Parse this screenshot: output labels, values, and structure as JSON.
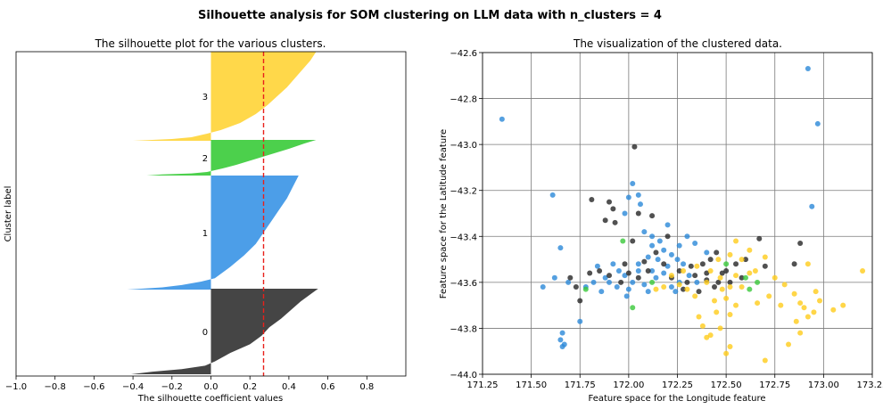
{
  "figure": {
    "suptitle": "Silhouette analysis for SOM clustering on LLM data with n_clusters = 4"
  },
  "chart_data": [
    {
      "type": "area",
      "title": "The silhouette plot for the various clusters.",
      "xlabel": "The silhouette coefficient values",
      "ylabel": "Cluster label",
      "xlim": [
        -1.0,
        1.0
      ],
      "xticks": [
        -1.0,
        -0.8,
        -0.6,
        -0.4,
        -0.2,
        0.0,
        0.2,
        0.4,
        0.6,
        0.8
      ],
      "xtick_labels": [
        "−1.0",
        "−0.8",
        "−0.6",
        "−0.4",
        "−0.2",
        "0.0",
        "0.2",
        "0.4",
        "0.6",
        "0.8"
      ],
      "average_silhouette": 0.27,
      "series": [
        {
          "name": "0",
          "label": "0",
          "color": "#454545",
          "profile": [
            [
              0,
              -0.41
            ],
            [
              0.03,
              -0.3
            ],
            [
              0.06,
              -0.15
            ],
            [
              0.1,
              -0.03
            ],
            [
              0.15,
              0.02
            ],
            [
              0.25,
              0.1
            ],
            [
              0.35,
              0.2
            ],
            [
              0.45,
              0.26
            ],
            [
              0.55,
              0.3
            ],
            [
              0.65,
              0.36
            ],
            [
              0.75,
              0.41
            ],
            [
              0.85,
              0.46
            ],
            [
              0.95,
              0.52
            ],
            [
              1.0,
              0.55
            ]
          ]
        },
        {
          "name": "1",
          "label": "1",
          "color": "#4c9ee8",
          "profile": [
            [
              0,
              -0.43
            ],
            [
              0.02,
              -0.25
            ],
            [
              0.04,
              -0.15
            ],
            [
              0.07,
              -0.05
            ],
            [
              0.1,
              0.02
            ],
            [
              0.2,
              0.1
            ],
            [
              0.3,
              0.17
            ],
            [
              0.4,
              0.23
            ],
            [
              0.5,
              0.27
            ],
            [
              0.6,
              0.31
            ],
            [
              0.7,
              0.35
            ],
            [
              0.8,
              0.39
            ],
            [
              0.9,
              0.42
            ],
            [
              1.0,
              0.45
            ]
          ]
        },
        {
          "name": "2",
          "label": "2",
          "color": "#4cd04c",
          "profile": [
            [
              0,
              -0.33
            ],
            [
              0.03,
              -0.25
            ],
            [
              0.06,
              -0.1
            ],
            [
              0.1,
              -0.02
            ],
            [
              0.2,
              0.06
            ],
            [
              0.3,
              0.13
            ],
            [
              0.45,
              0.22
            ],
            [
              0.6,
              0.31
            ],
            [
              0.75,
              0.4
            ],
            [
              0.9,
              0.48
            ],
            [
              1.0,
              0.54
            ]
          ]
        },
        {
          "name": "3",
          "label": "3",
          "color": "#ffd84a",
          "profile": [
            [
              0,
              -0.4
            ],
            [
              0.02,
              -0.2
            ],
            [
              0.04,
              -0.1
            ],
            [
              0.08,
              -0.02
            ],
            [
              0.12,
              0.05
            ],
            [
              0.2,
              0.15
            ],
            [
              0.3,
              0.23
            ],
            [
              0.4,
              0.29
            ],
            [
              0.5,
              0.34
            ],
            [
              0.6,
              0.39
            ],
            [
              0.7,
              0.43
            ],
            [
              0.8,
              0.47
            ],
            [
              0.9,
              0.51
            ],
            [
              1.0,
              0.54
            ]
          ]
        }
      ]
    },
    {
      "type": "scatter",
      "title": "The visualization of the clustered data.",
      "xlabel": "Feature space for the Longitude feature",
      "ylabel": "Feature space for the Latitude feature",
      "xlim": [
        171.25,
        173.25
      ],
      "ylim": [
        -44.0,
        -42.6
      ],
      "grid": true,
      "xticks": [
        171.25,
        171.5,
        171.75,
        172.0,
        172.25,
        172.5,
        172.75,
        173.0,
        173.25
      ],
      "xtick_labels": [
        "171.25",
        "171.50",
        "171.75",
        "172.00",
        "172.25",
        "172.50",
        "172.75",
        "173.00",
        "173.25"
      ],
      "yticks": [
        -44.0,
        -43.8,
        -43.6,
        -43.4,
        -43.2,
        -43.0,
        -42.8,
        -42.6
      ],
      "ytick_labels": [
        "−44.0",
        "−43.8",
        "−43.6",
        "−43.4",
        "−43.2",
        "−43.0",
        "−42.8",
        "−42.6"
      ],
      "series": [
        {
          "name": "0",
          "color": "#252525",
          "points": [
            [
              172.03,
              -43.01
            ],
            [
              171.81,
              -43.24
            ],
            [
              171.9,
              -43.25
            ],
            [
              171.92,
              -43.28
            ],
            [
              171.93,
              -43.34
            ],
            [
              171.88,
              -43.33
            ],
            [
              172.05,
              -43.3
            ],
            [
              172.12,
              -43.31
            ],
            [
              172.02,
              -43.42
            ],
            [
              172.2,
              -43.4
            ],
            [
              172.45,
              -43.47
            ],
            [
              172.5,
              -43.55
            ],
            [
              172.4,
              -43.56
            ],
            [
              172.34,
              -43.57
            ],
            [
              172.3,
              -43.6
            ],
            [
              172.28,
              -43.63
            ],
            [
              172.36,
              -43.64
            ],
            [
              172.46,
              -43.6
            ],
            [
              172.4,
              -43.59
            ],
            [
              172.55,
              -43.52
            ],
            [
              172.6,
              -43.5
            ],
            [
              172.67,
              -43.41
            ],
            [
              172.7,
              -43.53
            ],
            [
              172.88,
              -43.43
            ],
            [
              172.85,
              -43.52
            ],
            [
              172.1,
              -43.55
            ],
            [
              172.05,
              -43.58
            ],
            [
              172.0,
              -43.56
            ],
            [
              171.96,
              -43.6
            ],
            [
              171.9,
              -43.57
            ],
            [
              171.85,
              -43.55
            ],
            [
              171.8,
              -43.56
            ],
            [
              171.7,
              -43.58
            ],
            [
              171.73,
              -43.62
            ],
            [
              171.75,
              -43.68
            ],
            [
              172.18,
              -43.52
            ],
            [
              172.22,
              -43.58
            ],
            [
              172.26,
              -43.55
            ],
            [
              172.14,
              -43.47
            ],
            [
              172.08,
              -43.51
            ],
            [
              171.98,
              -43.52
            ],
            [
              172.44,
              -43.62
            ],
            [
              172.52,
              -43.6
            ],
            [
              172.32,
              -43.53
            ],
            [
              172.38,
              -43.52
            ],
            [
              172.48,
              -43.56
            ],
            [
              172.58,
              -43.58
            ],
            [
              172.42,
              -43.5
            ]
          ]
        },
        {
          "name": "1",
          "color": "#2a88d8",
          "points": [
            [
              171.35,
              -42.89
            ],
            [
              172.92,
              -42.67
            ],
            [
              172.97,
              -42.91
            ],
            [
              172.94,
              -43.27
            ],
            [
              171.61,
              -43.22
            ],
            [
              171.65,
              -43.45
            ],
            [
              171.66,
              -43.82
            ],
            [
              171.65,
              -43.85
            ],
            [
              171.66,
              -43.88
            ],
            [
              171.67,
              -43.87
            ],
            [
              171.75,
              -43.77
            ],
            [
              171.56,
              -43.62
            ],
            [
              171.62,
              -43.58
            ],
            [
              171.69,
              -43.6
            ],
            [
              172.02,
              -43.17
            ],
            [
              172.05,
              -43.22
            ],
            [
              172.0,
              -43.23
            ],
            [
              172.06,
              -43.26
            ],
            [
              171.98,
              -43.3
            ],
            [
              172.08,
              -43.38
            ],
            [
              172.2,
              -43.35
            ],
            [
              172.3,
              -43.4
            ],
            [
              172.12,
              -43.44
            ],
            [
              172.1,
              -43.49
            ],
            [
              172.15,
              -43.5
            ],
            [
              172.05,
              -43.52
            ],
            [
              171.95,
              -43.55
            ],
            [
              171.88,
              -43.58
            ],
            [
              171.82,
              -43.6
            ],
            [
              171.78,
              -43.62
            ],
            [
              171.84,
              -43.53
            ],
            [
              171.92,
              -43.52
            ],
            [
              171.98,
              -43.57
            ],
            [
              172.02,
              -43.6
            ],
            [
              172.08,
              -43.61
            ],
            [
              172.14,
              -43.58
            ],
            [
              172.18,
              -43.56
            ],
            [
              172.22,
              -43.62
            ],
            [
              172.24,
              -43.64
            ],
            [
              172.1,
              -43.64
            ],
            [
              172.0,
              -43.63
            ],
            [
              171.94,
              -43.62
            ],
            [
              171.9,
              -43.6
            ],
            [
              172.16,
              -43.42
            ],
            [
              172.12,
              -43.4
            ],
            [
              172.26,
              -43.44
            ],
            [
              172.34,
              -43.43
            ],
            [
              172.4,
              -43.47
            ],
            [
              172.25,
              -43.5
            ],
            [
              172.2,
              -43.53
            ],
            [
              172.31,
              -43.57
            ],
            [
              172.28,
              -43.52
            ],
            [
              172.35,
              -43.6
            ],
            [
              172.12,
              -43.55
            ],
            [
              171.86,
              -43.64
            ],
            [
              171.99,
              -43.66
            ],
            [
              172.05,
              -43.55
            ],
            [
              172.18,
              -43.46
            ],
            [
              172.22,
              -43.48
            ],
            [
              172.26,
              -43.6
            ]
          ]
        },
        {
          "name": "2",
          "color": "#3ac83a",
          "points": [
            [
              171.97,
              -43.42
            ],
            [
              172.02,
              -43.71
            ],
            [
              171.78,
              -43.63
            ],
            [
              172.6,
              -43.58
            ],
            [
              172.62,
              -43.63
            ],
            [
              172.66,
              -43.6
            ],
            [
              172.12,
              -43.6
            ],
            [
              172.5,
              -43.52
            ]
          ]
        },
        {
          "name": "3",
          "color": "#ffcc1a",
          "points": [
            [
              172.55,
              -43.42
            ],
            [
              172.62,
              -43.46
            ],
            [
              172.7,
              -43.49
            ],
            [
              172.65,
              -43.55
            ],
            [
              172.75,
              -43.58
            ],
            [
              172.8,
              -43.61
            ],
            [
              172.85,
              -43.65
            ],
            [
              172.88,
              -43.69
            ],
            [
              172.9,
              -43.71
            ],
            [
              172.95,
              -43.73
            ],
            [
              172.98,
              -43.68
            ],
            [
              173.05,
              -43.72
            ],
            [
              173.1,
              -43.7
            ],
            [
              173.2,
              -43.55
            ],
            [
              172.92,
              -43.52
            ],
            [
              172.86,
              -43.77
            ],
            [
              172.82,
              -43.87
            ],
            [
              172.88,
              -43.82
            ],
            [
              172.92,
              -43.75
            ],
            [
              172.96,
              -43.64
            ],
            [
              172.7,
              -43.94
            ],
            [
              172.5,
              -43.91
            ],
            [
              172.52,
              -43.88
            ],
            [
              172.47,
              -43.8
            ],
            [
              172.42,
              -43.83
            ],
            [
              172.4,
              -43.84
            ],
            [
              172.36,
              -43.75
            ],
            [
              172.38,
              -43.79
            ],
            [
              172.45,
              -43.73
            ],
            [
              172.52,
              -43.74
            ],
            [
              172.55,
              -43.7
            ],
            [
              172.5,
              -43.67
            ],
            [
              172.44,
              -43.68
            ],
            [
              172.34,
              -43.66
            ],
            [
              172.3,
              -43.63
            ],
            [
              172.26,
              -43.61
            ],
            [
              172.22,
              -43.57
            ],
            [
              172.28,
              -43.55
            ],
            [
              172.35,
              -43.53
            ],
            [
              172.42,
              -43.55
            ],
            [
              172.47,
              -43.58
            ],
            [
              172.52,
              -43.62
            ],
            [
              172.58,
              -43.62
            ],
            [
              172.62,
              -43.56
            ],
            [
              172.58,
              -43.5
            ],
            [
              172.52,
              -43.48
            ],
            [
              172.46,
              -43.5
            ],
            [
              172.4,
              -43.6
            ],
            [
              172.48,
              -43.63
            ],
            [
              172.55,
              -43.57
            ],
            [
              172.18,
              -43.62
            ],
            [
              172.14,
              -43.63
            ],
            [
              172.66,
              -43.69
            ],
            [
              172.72,
              -43.66
            ],
            [
              172.78,
              -43.7
            ]
          ]
        }
      ]
    }
  ]
}
